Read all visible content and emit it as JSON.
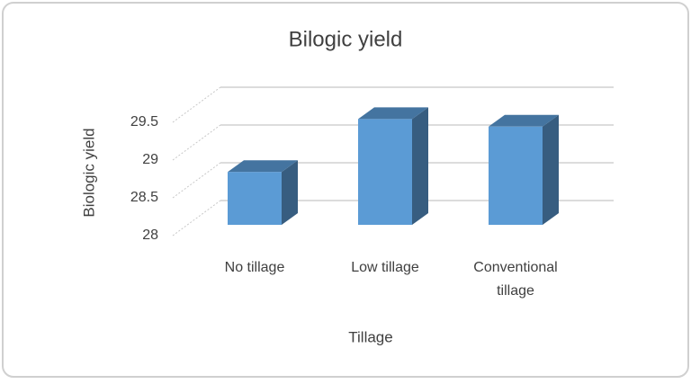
{
  "chart_data": {
    "type": "bar3d",
    "title": "Bilogic yield",
    "x_label": "Tillage",
    "y_label": "Biologic yield",
    "categories": [
      "No tillage",
      "Low tillage",
      "Conventional tillage"
    ],
    "values": [
      28.7,
      29.4,
      29.3
    ],
    "color": "#5b9bd5",
    "ylim": [
      28,
      29.5
    ],
    "yticks": [
      28,
      28.5,
      29,
      29.5
    ],
    "grid": true
  }
}
